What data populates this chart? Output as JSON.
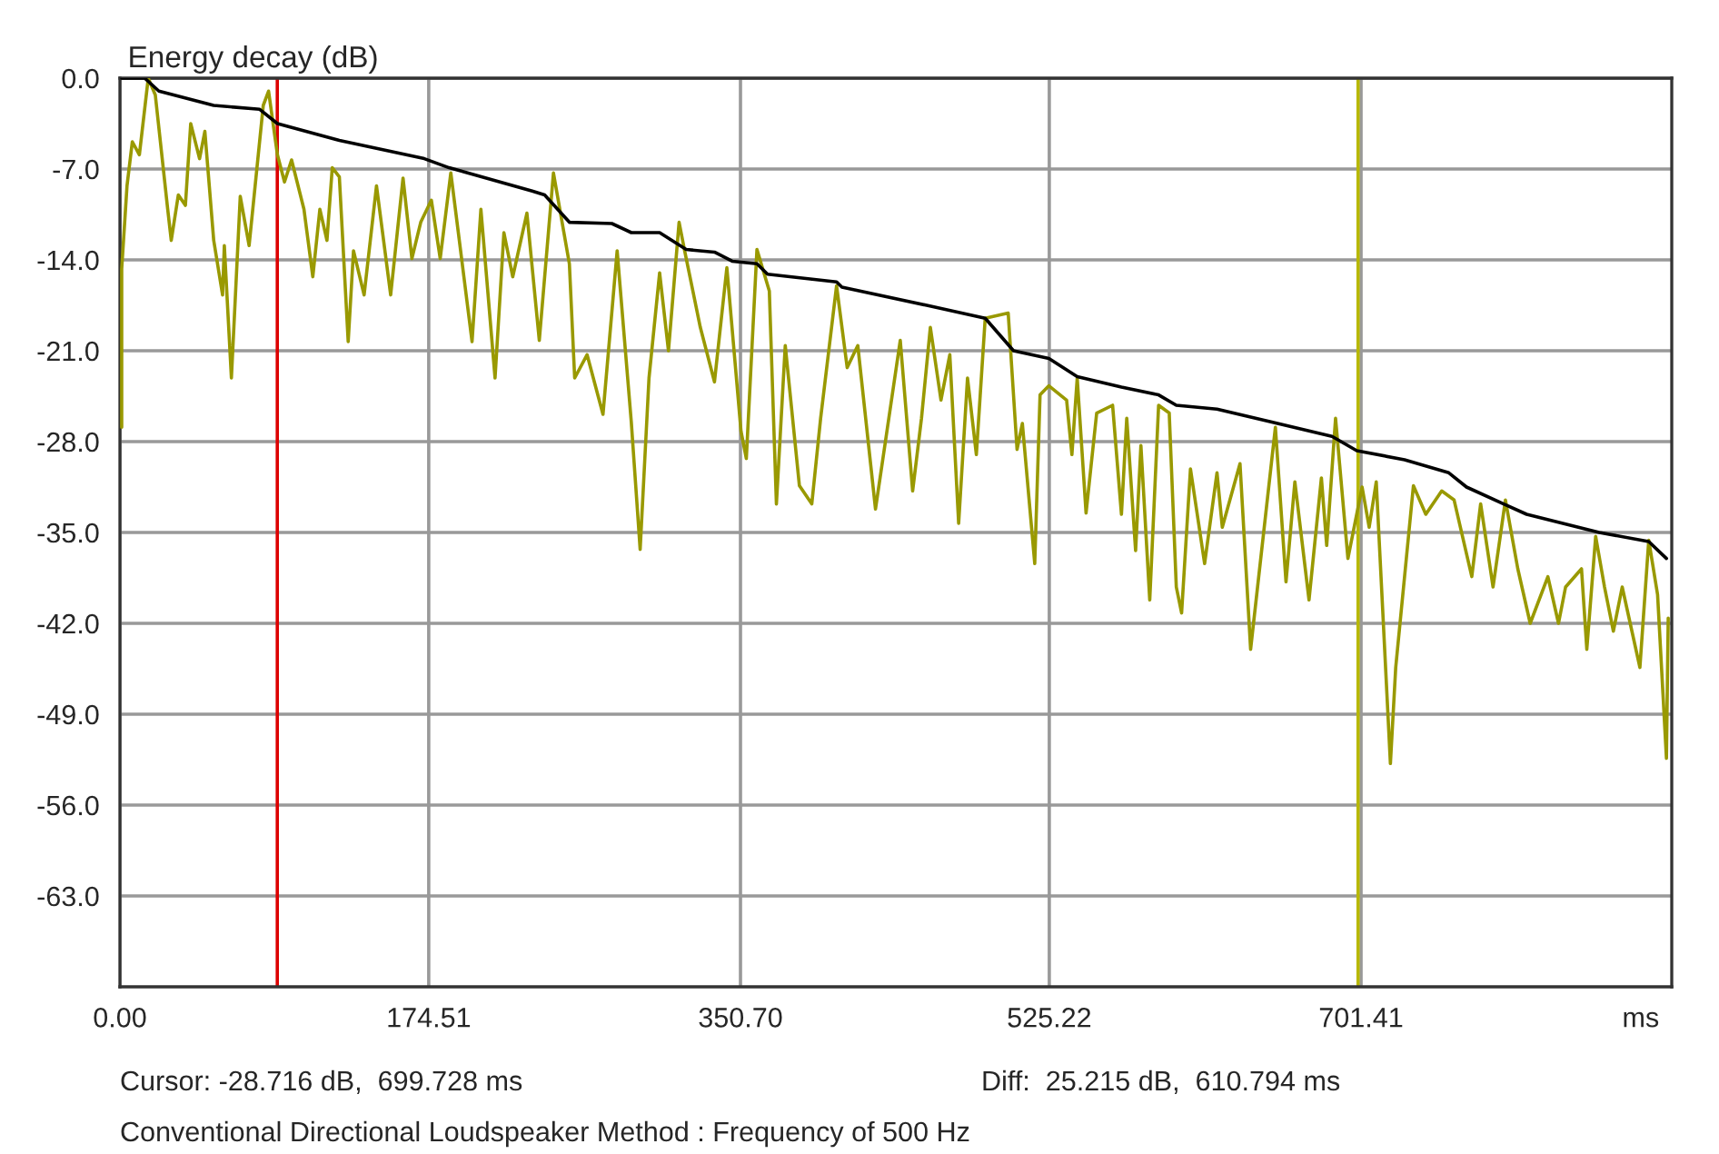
{
  "chart_data": {
    "type": "line",
    "ylabel": "Energy decay (dB)",
    "xlabel": "ms",
    "xlim": [
      0,
      877
    ],
    "ylim": [
      -70,
      0
    ],
    "xticks": [
      {
        "value": 0,
        "label": "0.00"
      },
      174.51,
      {
        "value": 350.7,
        "label": "350.70"
      },
      525.22,
      701.41
    ],
    "yticks": [
      {
        "value": 0,
        "label": "0.0"
      },
      {
        "value": -7,
        "label": "-7.0"
      },
      {
        "value": -14,
        "label": "-14.0"
      },
      {
        "value": -21,
        "label": "-21.0"
      },
      {
        "value": -28,
        "label": "-28.0"
      },
      {
        "value": -35,
        "label": "-35.0"
      },
      {
        "value": -42,
        "label": "-42.0"
      },
      {
        "value": -49,
        "label": "-49.0"
      },
      {
        "value": -56,
        "label": "-56.0"
      },
      {
        "value": -63,
        "label": "-63.0"
      }
    ],
    "grid": true,
    "series": [
      {
        "color": "#999900",
        "x": [
          1,
          1,
          4,
          7,
          11,
          16,
          20,
          27,
          29,
          33,
          37,
          40,
          45,
          48,
          53,
          58,
          59,
          63,
          68,
          73,
          81,
          84,
          89,
          93,
          97,
          104,
          109,
          113,
          117,
          120,
          124,
          129,
          132,
          138,
          145,
          153,
          160,
          165,
          170,
          176,
          181,
          187,
          199,
          204,
          212,
          217,
          222,
          230,
          237,
          245,
          254,
          257,
          264,
          273,
          281,
          289,
          294,
          299,
          305,
          310,
          316,
          319,
          328,
          336,
          343,
          351,
          354,
          360,
          367,
          371,
          376,
          384,
          391,
          396,
          405,
          411,
          417,
          427,
          441,
          448,
          453,
          458,
          464,
          469,
          474,
          479,
          484,
          489,
          502,
          507,
          510,
          517,
          520,
          525,
          535,
          538,
          541,
          546,
          552,
          561,
          566,
          569,
          574,
          577,
          582,
          587,
          593,
          597,
          600,
          605,
          613,
          620,
          623,
          633,
          639,
          653,
          659,
          664,
          672,
          679,
          682,
          687,
          694,
          702,
          706,
          710,
          718,
          721,
          731,
          738,
          747,
          754,
          764,
          769,
          776,
          783,
          790,
          797,
          807,
          813,
          817,
          826,
          829,
          834,
          839,
          844,
          849,
          859,
          864,
          869,
          874,
          875
        ],
        "values": [
          -26.9,
          -14.7,
          -8.3,
          -4.9,
          -5.9,
          0.0,
          -1.3,
          -10.1,
          -12.5,
          -9.0,
          -9.8,
          -3.5,
          -6.2,
          -4.1,
          -12.5,
          -16.7,
          -12.9,
          -23.1,
          -9.1,
          -12.9,
          -2.1,
          -1.0,
          -5.9,
          -8.0,
          -6.3,
          -10.1,
          -15.3,
          -10.1,
          -12.5,
          -6.9,
          -7.6,
          -20.3,
          -13.3,
          -16.7,
          -8.3,
          -16.7,
          -7.7,
          -13.9,
          -11.1,
          -9.4,
          -13.9,
          -7.3,
          -20.3,
          -10.1,
          -23.1,
          -11.9,
          -15.3,
          -10.4,
          -20.2,
          -7.3,
          -14.3,
          -23.1,
          -21.3,
          -25.9,
          -13.3,
          -26.5,
          -36.3,
          -23.1,
          -15.0,
          -21.0,
          -11.1,
          -13.2,
          -19.2,
          -23.4,
          -14.6,
          -27.2,
          -29.3,
          -13.2,
          -16.4,
          -32.8,
          -20.6,
          -31.4,
          -32.8,
          -26.2,
          -16.0,
          -22.3,
          -20.6,
          -33.2,
          -20.2,
          -31.8,
          -26.2,
          -19.2,
          -24.8,
          -21.3,
          -34.3,
          -23.1,
          -29.0,
          -18.5,
          -18.1,
          -28.6,
          -26.6,
          -37.4,
          -24.4,
          -23.7,
          -24.8,
          -29.0,
          -23.1,
          -33.5,
          -25.8,
          -25.2,
          -33.6,
          -26.2,
          -36.4,
          -28.3,
          -40.2,
          -25.2,
          -25.8,
          -39.2,
          -41.2,
          -30.1,
          -37.4,
          -30.4,
          -34.6,
          -29.7,
          -44.0,
          -26.9,
          -38.8,
          -31.1,
          -40.2,
          -30.8,
          -36.0,
          -26.2,
          -37.0,
          -31.5,
          -34.6,
          -31.1,
          -52.8,
          -45.4,
          -31.4,
          -33.6,
          -31.8,
          -32.5,
          -38.4,
          -32.8,
          -39.2,
          -32.5,
          -37.8,
          -42.0,
          -38.4,
          -42.0,
          -39.2,
          -37.8,
          -44.0,
          -35.3,
          -39.2,
          -42.6,
          -39.2,
          -45.4,
          -35.6,
          -39.8,
          -52.4,
          -41.6
        ]
      },
      {
        "color": "#000000",
        "x": [
          1,
          14,
          22,
          53,
          79,
          89,
          124,
          172,
          186,
          233,
          240,
          254,
          278,
          289,
          305,
          320,
          336,
          346,
          360,
          366,
          405,
          408,
          456,
          489,
          505,
          525,
          541,
          566,
          587,
          597,
          620,
          651,
          685,
          699,
          726,
          751,
          761,
          782,
          795,
          836,
          864,
          874
        ],
        "values": [
          0.0,
          0.0,
          -1.0,
          -2.1,
          -2.4,
          -3.5,
          -4.8,
          -6.2,
          -6.9,
          -8.7,
          -9.0,
          -11.1,
          -11.2,
          -11.9,
          -11.9,
          -13.2,
          -13.4,
          -14.1,
          -14.3,
          -15.1,
          -15.7,
          -16.1,
          -17.5,
          -18.5,
          -21.0,
          -21.6,
          -23.0,
          -23.8,
          -24.4,
          -25.2,
          -25.5,
          -26.5,
          -27.6,
          -28.7,
          -29.4,
          -30.4,
          -31.5,
          -32.8,
          -33.6,
          -35.0,
          -35.7,
          -37.0
        ]
      }
    ],
    "ref_lines": [
      {
        "axis": "x",
        "value": 88.934,
        "color": "#dd0000"
      },
      {
        "axis": "x",
        "value": 699.728,
        "color": "#b8b800"
      }
    ],
    "annotations": [
      "Cursor: -28.716 dB,  699.728 ms",
      "Diff:  25.215 dB,  610.794 ms",
      "Conventional Directional Loudspeaker Method : Frequency of 500 Hz"
    ]
  }
}
